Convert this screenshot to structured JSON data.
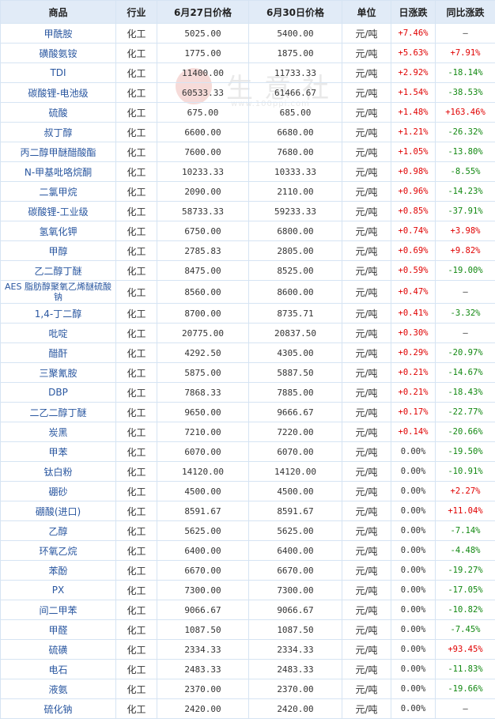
{
  "colors": {
    "header_bg": "#e1ebf7",
    "border": "#d6e4f3",
    "name": "#2a57a0",
    "up": "#e00000",
    "down": "#118811"
  },
  "watermark": {
    "text": "生意社",
    "url": "www.100ppi.com"
  },
  "headers": [
    "商品",
    "行业",
    "6月27日价格",
    "6月30日价格",
    "单位",
    "日涨跌",
    "同比涨跌"
  ],
  "rows": [
    {
      "name": "甲酰胺",
      "industry": "化工",
      "p1": "5025.00",
      "p2": "5400.00",
      "unit": "元/吨",
      "daily": "+7.46%",
      "yoy": "—"
    },
    {
      "name": "磺酸氨铵",
      "industry": "化工",
      "p1": "1775.00",
      "p2": "1875.00",
      "unit": "元/吨",
      "daily": "+5.63%",
      "yoy": "+7.91%"
    },
    {
      "name": "TDI",
      "industry": "化工",
      "p1": "11400.00",
      "p2": "11733.33",
      "unit": "元/吨",
      "daily": "+2.92%",
      "yoy": "-18.14%"
    },
    {
      "name": "碳酸锂-电池级",
      "industry": "化工",
      "p1": "60533.33",
      "p2": "61466.67",
      "unit": "元/吨",
      "daily": "+1.54%",
      "yoy": "-38.53%"
    },
    {
      "name": "硫酸",
      "industry": "化工",
      "p1": "675.00",
      "p2": "685.00",
      "unit": "元/吨",
      "daily": "+1.48%",
      "yoy": "+163.46%"
    },
    {
      "name": "叔丁醇",
      "industry": "化工",
      "p1": "6600.00",
      "p2": "6680.00",
      "unit": "元/吨",
      "daily": "+1.21%",
      "yoy": "-26.32%"
    },
    {
      "name": "丙二醇甲醚醋酸酯",
      "industry": "化工",
      "p1": "7600.00",
      "p2": "7680.00",
      "unit": "元/吨",
      "daily": "+1.05%",
      "yoy": "-13.80%"
    },
    {
      "name": "N-甲基吡咯烷酮",
      "industry": "化工",
      "p1": "10233.33",
      "p2": "10333.33",
      "unit": "元/吨",
      "daily": "+0.98%",
      "yoy": "-8.55%"
    },
    {
      "name": "二氯甲烷",
      "industry": "化工",
      "p1": "2090.00",
      "p2": "2110.00",
      "unit": "元/吨",
      "daily": "+0.96%",
      "yoy": "-14.23%"
    },
    {
      "name": "碳酸锂-工业级",
      "industry": "化工",
      "p1": "58733.33",
      "p2": "59233.33",
      "unit": "元/吨",
      "daily": "+0.85%",
      "yoy": "-37.91%"
    },
    {
      "name": "氢氧化钾",
      "industry": "化工",
      "p1": "6750.00",
      "p2": "6800.00",
      "unit": "元/吨",
      "daily": "+0.74%",
      "yoy": "+3.98%"
    },
    {
      "name": "甲醇",
      "industry": "化工",
      "p1": "2785.83",
      "p2": "2805.00",
      "unit": "元/吨",
      "daily": "+0.69%",
      "yoy": "+9.82%"
    },
    {
      "name": "乙二醇丁醚",
      "industry": "化工",
      "p1": "8475.00",
      "p2": "8525.00",
      "unit": "元/吨",
      "daily": "+0.59%",
      "yoy": "-19.00%"
    },
    {
      "name": "AES 脂肪醇聚氧乙烯醚硫酸钠",
      "industry": "化工",
      "p1": "8560.00",
      "p2": "8600.00",
      "unit": "元/吨",
      "daily": "+0.47%",
      "yoy": "—",
      "wrap": true
    },
    {
      "name": "1,4-丁二醇",
      "industry": "化工",
      "p1": "8700.00",
      "p2": "8735.71",
      "unit": "元/吨",
      "daily": "+0.41%",
      "yoy": "-3.32%"
    },
    {
      "name": "吡啶",
      "industry": "化工",
      "p1": "20775.00",
      "p2": "20837.50",
      "unit": "元/吨",
      "daily": "+0.30%",
      "yoy": "—"
    },
    {
      "name": "醋酐",
      "industry": "化工",
      "p1": "4292.50",
      "p2": "4305.00",
      "unit": "元/吨",
      "daily": "+0.29%",
      "yoy": "-20.97%"
    },
    {
      "name": "三聚氰胺",
      "industry": "化工",
      "p1": "5875.00",
      "p2": "5887.50",
      "unit": "元/吨",
      "daily": "+0.21%",
      "yoy": "-14.67%"
    },
    {
      "name": "DBP",
      "industry": "化工",
      "p1": "7868.33",
      "p2": "7885.00",
      "unit": "元/吨",
      "daily": "+0.21%",
      "yoy": "-18.43%"
    },
    {
      "name": "二乙二醇丁醚",
      "industry": "化工",
      "p1": "9650.00",
      "p2": "9666.67",
      "unit": "元/吨",
      "daily": "+0.17%",
      "yoy": "-22.77%"
    },
    {
      "name": "炭黑",
      "industry": "化工",
      "p1": "7210.00",
      "p2": "7220.00",
      "unit": "元/吨",
      "daily": "+0.14%",
      "yoy": "-20.66%"
    },
    {
      "name": "甲苯",
      "industry": "化工",
      "p1": "6070.00",
      "p2": "6070.00",
      "unit": "元/吨",
      "daily": "0.00%",
      "yoy": "-19.50%"
    },
    {
      "name": "钛白粉",
      "industry": "化工",
      "p1": "14120.00",
      "p2": "14120.00",
      "unit": "元/吨",
      "daily": "0.00%",
      "yoy": "-10.91%"
    },
    {
      "name": "硼砂",
      "industry": "化工",
      "p1": "4500.00",
      "p2": "4500.00",
      "unit": "元/吨",
      "daily": "0.00%",
      "yoy": "+2.27%"
    },
    {
      "name": "硼酸(进口)",
      "industry": "化工",
      "p1": "8591.67",
      "p2": "8591.67",
      "unit": "元/吨",
      "daily": "0.00%",
      "yoy": "+11.04%"
    },
    {
      "name": "乙醇",
      "industry": "化工",
      "p1": "5625.00",
      "p2": "5625.00",
      "unit": "元/吨",
      "daily": "0.00%",
      "yoy": "-7.14%"
    },
    {
      "name": "环氧乙烷",
      "industry": "化工",
      "p1": "6400.00",
      "p2": "6400.00",
      "unit": "元/吨",
      "daily": "0.00%",
      "yoy": "-4.48%"
    },
    {
      "name": "苯酚",
      "industry": "化工",
      "p1": "6670.00",
      "p2": "6670.00",
      "unit": "元/吨",
      "daily": "0.00%",
      "yoy": "-19.27%"
    },
    {
      "name": "PX",
      "industry": "化工",
      "p1": "7300.00",
      "p2": "7300.00",
      "unit": "元/吨",
      "daily": "0.00%",
      "yoy": "-17.05%"
    },
    {
      "name": "间二甲苯",
      "industry": "化工",
      "p1": "9066.67",
      "p2": "9066.67",
      "unit": "元/吨",
      "daily": "0.00%",
      "yoy": "-10.82%"
    },
    {
      "name": "甲醛",
      "industry": "化工",
      "p1": "1087.50",
      "p2": "1087.50",
      "unit": "元/吨",
      "daily": "0.00%",
      "yoy": "-7.45%"
    },
    {
      "name": "硫磺",
      "industry": "化工",
      "p1": "2334.33",
      "p2": "2334.33",
      "unit": "元/吨",
      "daily": "0.00%",
      "yoy": "+93.45%"
    },
    {
      "name": "电石",
      "industry": "化工",
      "p1": "2483.33",
      "p2": "2483.33",
      "unit": "元/吨",
      "daily": "0.00%",
      "yoy": "-11.83%"
    },
    {
      "name": "液氨",
      "industry": "化工",
      "p1": "2370.00",
      "p2": "2370.00",
      "unit": "元/吨",
      "daily": "0.00%",
      "yoy": "-19.66%"
    },
    {
      "name": "硫化钠",
      "industry": "化工",
      "p1": "2420.00",
      "p2": "2420.00",
      "unit": "元/吨",
      "daily": "0.00%",
      "yoy": "—"
    }
  ]
}
